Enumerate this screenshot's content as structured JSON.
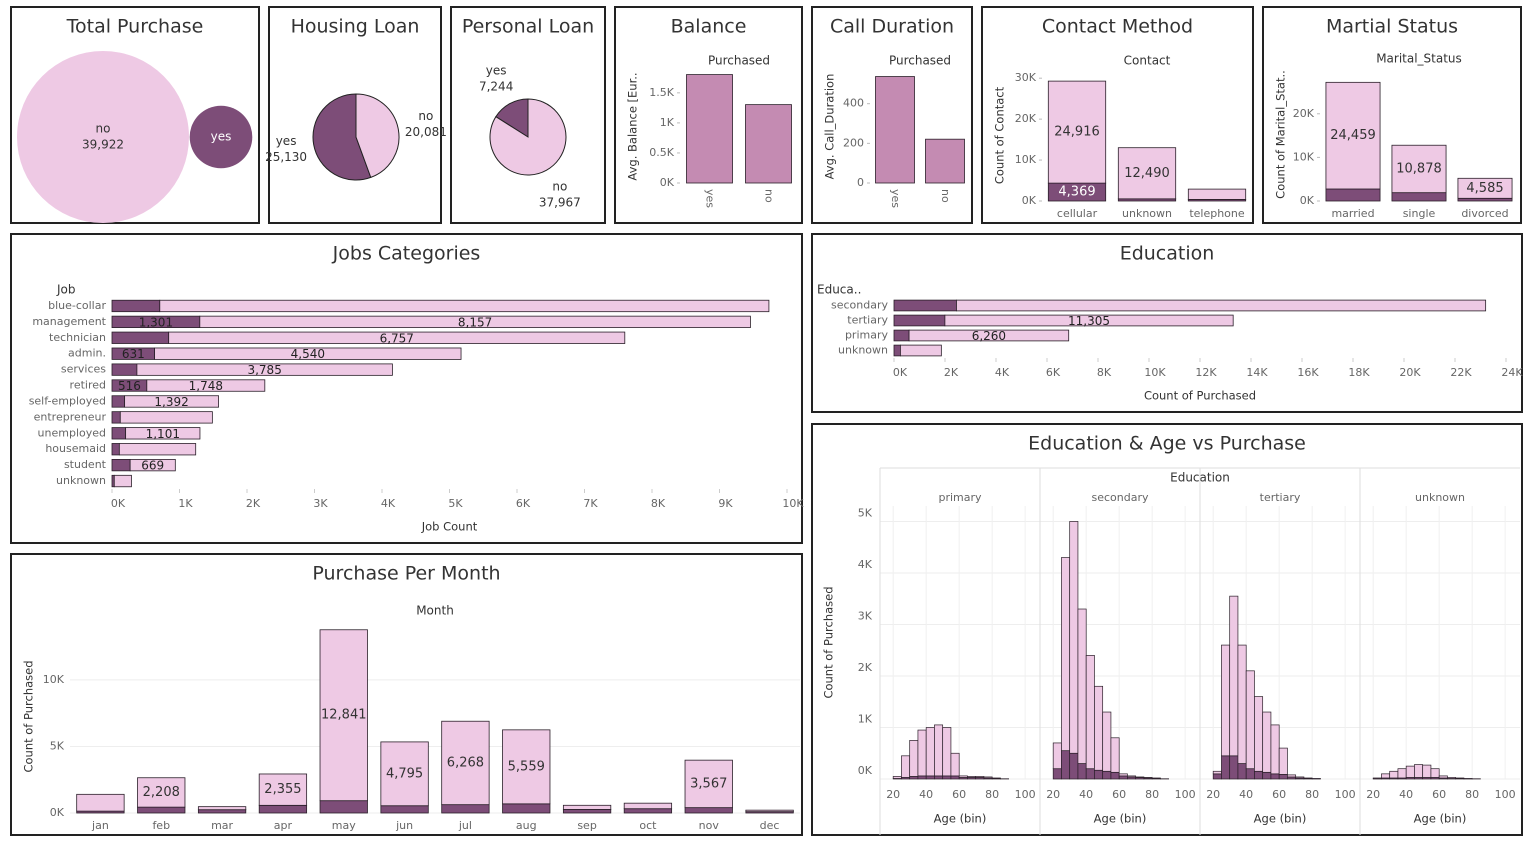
{
  "chart_data": [
    {
      "type": "bubble",
      "title": "Total Purchase",
      "categories": [
        "no",
        "yes"
      ],
      "values": [
        39922,
        5289
      ],
      "value_labels": [
        "39,922",
        null
      ],
      "colors": [
        "#eec9e4",
        "#7d4d78"
      ]
    },
    {
      "type": "pie",
      "title": "Housing Loan",
      "categories": [
        "yes",
        "no"
      ],
      "values": [
        25130,
        20081
      ],
      "value_labels": [
        "25,130",
        "20,081"
      ],
      "colors": [
        "#7d4d78",
        "#eec9e4"
      ]
    },
    {
      "type": "pie",
      "title": "Personal Loan",
      "categories": [
        "yes",
        "no"
      ],
      "values": [
        7244,
        37967
      ],
      "value_labels": [
        "7,244",
        "37,967"
      ],
      "colors": [
        "#7d4d78",
        "#eec9e4"
      ]
    },
    {
      "type": "bar",
      "title": "Balance",
      "header": "Purchased",
      "y_label": "Avg. Balance [Eur..",
      "categories": [
        "yes",
        "no"
      ],
      "series": [
        {
          "color": "#c48bb2",
          "values": [
            1804,
            1304
          ]
        }
      ],
      "ylim": [
        0,
        1880
      ],
      "yticks": [
        {
          "value": 0,
          "label": "0K"
        },
        {
          "value": 500,
          "label": "0.5K"
        },
        {
          "value": 1000,
          "label": "1K"
        },
        {
          "value": 1500,
          "label": "1.5K"
        }
      ],
      "grid": false
    },
    {
      "type": "bar",
      "title": "Call Duration",
      "header": "Purchased",
      "y_label": "Avg. Call_Duration",
      "categories": [
        "yes",
        "no"
      ],
      "series": [
        {
          "color": "#c48bb2",
          "values": [
            537,
            221
          ]
        }
      ],
      "ylim": [
        0,
        570
      ],
      "yticks": [
        0,
        200,
        400
      ],
      "grid": false
    },
    {
      "type": "bar",
      "title": "Contact Method",
      "header": "Contact",
      "y_label": "Count of Contact",
      "categories": [
        "cellular",
        "unknown",
        "telephone"
      ],
      "series": [
        {
          "color": "#7d4d78",
          "values": [
            4369,
            530,
            390
          ],
          "value_labels": [
            "4,369",
            null,
            null
          ]
        },
        {
          "color": "#eec9e4",
          "values": [
            24916,
            12490,
            2516
          ],
          "value_labels": [
            "24,916",
            "12,490",
            null
          ]
        }
      ],
      "ylim": [
        0,
        32000
      ],
      "yticks": [
        {
          "value": 0,
          "label": "0K"
        },
        {
          "value": 10000,
          "label": "10K"
        },
        {
          "value": 20000,
          "label": "20K"
        },
        {
          "value": 30000,
          "label": "30K"
        }
      ],
      "grid": false
    },
    {
      "type": "bar",
      "title": "Martial Status",
      "header": "Marital_Status",
      "y_label": "Count of Marital_Stat..",
      "categories": [
        "married",
        "single",
        "divorced"
      ],
      "series": [
        {
          "color": "#7d4d78",
          "values": [
            2755,
            1912,
            622
          ]
        },
        {
          "color": "#eec9e4",
          "values": [
            24459,
            10878,
            4585
          ],
          "value_labels": [
            "24,459",
            "10,878",
            "4,585"
          ]
        }
      ],
      "ylim": [
        0,
        30500
      ],
      "yticks": [
        {
          "value": 0,
          "label": "0K"
        },
        {
          "value": 10000,
          "label": "10K"
        },
        {
          "value": 20000,
          "label": "20K"
        }
      ],
      "grid": false
    },
    {
      "type": "hbar",
      "title": "Jobs Categories",
      "header": "Job",
      "x_label": "Job Count",
      "categories": [
        "blue-collar",
        "management",
        "technician",
        "admin.",
        "services",
        "retired",
        "self-employed",
        "entrepreneur",
        "unemployed",
        "housemaid",
        "student",
        "unknown"
      ],
      "series": [
        {
          "color": "#7d4d78",
          "values": [
            708,
            1301,
            840,
            631,
            369,
            516,
            187,
            123,
            202,
            109,
            269,
            34
          ],
          "value_labels": [
            null,
            "1,301",
            null,
            "631",
            null,
            "516",
            null,
            null,
            null,
            null,
            null,
            null
          ]
        },
        {
          "color": "#eec9e4",
          "values": [
            9024,
            8157,
            6757,
            4540,
            3785,
            1748,
            1392,
            1364,
            1101,
            1131,
            669,
            254
          ],
          "value_labels": [
            null,
            "8,157",
            "6,757",
            "4,540",
            "3,785",
            "1,748",
            "1,392",
            null,
            "1,101",
            null,
            "669",
            null
          ]
        }
      ],
      "xlim": [
        0,
        10000
      ],
      "xticks": [
        {
          "value": 0,
          "label": "0K"
        },
        {
          "value": 1000,
          "label": "1K"
        },
        {
          "value": 2000,
          "label": "2K"
        },
        {
          "value": 3000,
          "label": "3K"
        },
        {
          "value": 4000,
          "label": "4K"
        },
        {
          "value": 5000,
          "label": "5K"
        },
        {
          "value": 6000,
          "label": "6K"
        },
        {
          "value": 7000,
          "label": "7K"
        },
        {
          "value": 8000,
          "label": "8K"
        },
        {
          "value": 9000,
          "label": "9K"
        },
        {
          "value": 10000,
          "label": "10K"
        }
      ],
      "grid": false
    },
    {
      "type": "hbar",
      "title": "Education",
      "header": "Educa..",
      "x_label": "Count of Purchased",
      "categories": [
        "secondary",
        "tertiary",
        "primary",
        "unknown"
      ],
      "series": [
        {
          "color": "#7d4d78",
          "values": [
            2450,
            1996,
            591,
            252
          ]
        },
        {
          "color": "#eec9e4",
          "values": [
            20752,
            11305,
            6260,
            1605
          ],
          "value_labels": [
            null,
            "11,305",
            "6,260",
            null
          ]
        }
      ],
      "xlim": [
        0,
        24000
      ],
      "xticks": [
        {
          "value": 0,
          "label": "0K"
        },
        {
          "value": 2000,
          "label": "2K"
        },
        {
          "value": 4000,
          "label": "4K"
        },
        {
          "value": 6000,
          "label": "6K"
        },
        {
          "value": 8000,
          "label": "8K"
        },
        {
          "value": 10000,
          "label": "10K"
        },
        {
          "value": 12000,
          "label": "12K"
        },
        {
          "value": 14000,
          "label": "14K"
        },
        {
          "value": 16000,
          "label": "16K"
        },
        {
          "value": 18000,
          "label": "18K"
        },
        {
          "value": 20000,
          "label": "20K"
        },
        {
          "value": 22000,
          "label": "22K"
        },
        {
          "value": 24000,
          "label": "24K"
        }
      ],
      "grid": false
    },
    {
      "type": "bar",
      "title": "Purchase Per Month",
      "header": "Month",
      "y_label": "Count of Purchased",
      "categories": [
        "jan",
        "feb",
        "mar",
        "apr",
        "may",
        "jun",
        "jul",
        "aug",
        "sep",
        "oct",
        "nov",
        "dec"
      ],
      "series": [
        {
          "color": "#7d4d78",
          "values": [
            142,
            441,
            248,
            577,
            925,
            546,
            627,
            688,
            269,
            323,
            403,
            100
          ]
        },
        {
          "color": "#eec9e4",
          "values": [
            1261,
            2208,
            229,
            2355,
            12841,
            4795,
            6268,
            5559,
            310,
            415,
            3567,
            114
          ],
          "value_labels": [
            null,
            "2,208",
            null,
            "2,355",
            "12,841",
            "4,795",
            "6,268",
            "5,559",
            null,
            null,
            "3,567",
            null
          ]
        }
      ],
      "ylim": [
        0,
        14500
      ],
      "yticks": [
        {
          "value": 0,
          "label": "0K"
        },
        {
          "value": 5000,
          "label": "5K"
        },
        {
          "value": 10000,
          "label": "10K"
        }
      ],
      "grid": true
    },
    {
      "type": "histogram",
      "title": "Education & Age vs Purchase",
      "header": "Education",
      "x_label": "Age (bin)",
      "y_label": "Count of Purchased",
      "bins": [
        20,
        25,
        30,
        35,
        40,
        45,
        50,
        55,
        60,
        65,
        70,
        75,
        80,
        85,
        90
      ],
      "facets": [
        {
          "name": "primary",
          "series": [
            {
              "color": "#7d4d78",
              "values": [
                10,
                30,
                50,
                60,
                60,
                60,
                60,
                60,
                30,
                30,
                30,
                20,
                10,
                5
              ]
            },
            {
              "color": "#eec9e4",
              "values": [
                40,
                420,
                700,
                890,
                940,
                990,
                940,
                440,
                30,
                20,
                20,
                20,
                10,
                0
              ]
            }
          ]
        },
        {
          "name": "secondary",
          "series": [
            {
              "color": "#7d4d78",
              "values": [
                200,
                550,
                500,
                300,
                200,
                170,
                150,
                130,
                60,
                40,
                30,
                20,
                10,
                5
              ]
            },
            {
              "color": "#eec9e4",
              "values": [
                500,
                3750,
                4500,
                3000,
                2200,
                1630,
                1150,
                670,
                40,
                20,
                10,
                10,
                10,
                0
              ]
            }
          ]
        },
        {
          "name": "tertiary",
          "series": [
            {
              "color": "#7d4d78",
              "values": [
                100,
                450,
                450,
                300,
                200,
                150,
                130,
                100,
                90,
                40,
                20,
                10,
                5,
                0
              ]
            },
            {
              "color": "#eec9e4",
              "values": [
                50,
                2150,
                3100,
                2300,
                1900,
                1450,
                1170,
                950,
                510,
                40,
                20,
                10,
                5,
                0
              ]
            }
          ]
        },
        {
          "name": "unknown",
          "series": [
            {
              "color": "#7d4d78",
              "values": [
                5,
                20,
                20,
                20,
                30,
                30,
                30,
                30,
                20,
                10,
                10,
                5,
                0,
                0
              ]
            },
            {
              "color": "#eec9e4",
              "values": [
                15,
                80,
                130,
                180,
                220,
                250,
                240,
                170,
                40,
                20,
                10,
                5,
                5,
                0
              ]
            }
          ]
        }
      ],
      "xlim": [
        12,
        109
      ],
      "xticks": [
        20,
        40,
        60,
        80,
        100
      ],
      "ylim": [
        0,
        5300
      ],
      "yticks": [
        {
          "value": 0,
          "label": "0K"
        },
        {
          "value": 1000,
          "label": "1K"
        },
        {
          "value": 2000,
          "label": "2K"
        },
        {
          "value": 3000,
          "label": "3K"
        },
        {
          "value": 4000,
          "label": "4K"
        },
        {
          "value": 5000,
          "label": "5K"
        }
      ],
      "grid": true
    }
  ]
}
